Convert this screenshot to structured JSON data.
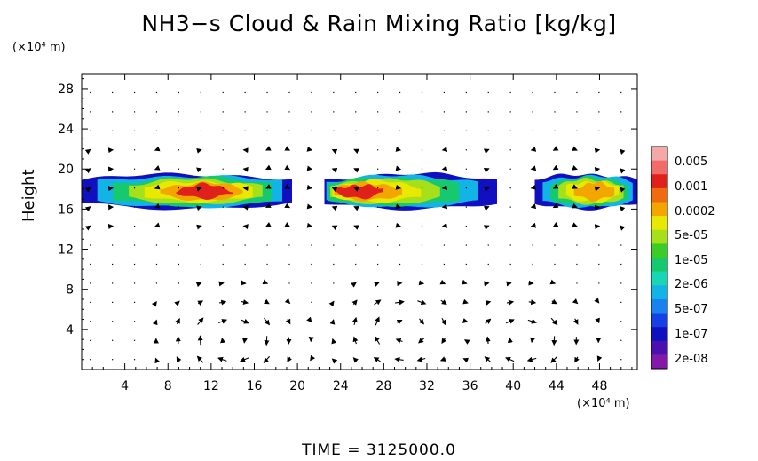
{
  "title": "NH3−s Cloud & Rain Mixing Ratio [kg/kg]",
  "y_unit": "(×10⁴ m)",
  "x_unit": "(×10⁴ m)",
  "ylabel": "Height",
  "time_label": "TIME  =  3125000.0",
  "chart_data": {
    "type": "heatmap",
    "title": "NH3−s Cloud & Rain Mixing Ratio [kg/kg]",
    "xlabel": "",
    "ylabel": "Height",
    "x_unit": "×10⁴ m",
    "y_unit": "×10⁴ m",
    "xlim": [
      0,
      51.5
    ],
    "ylim": [
      0,
      29.5
    ],
    "x_ticks": [
      4,
      8,
      12,
      16,
      20,
      24,
      28,
      32,
      36,
      40,
      44,
      48
    ],
    "y_ticks": [
      4,
      8,
      12,
      16,
      20,
      24,
      28
    ],
    "colorbar": {
      "labels": [
        "0.005",
        "0.001",
        "0.0002",
        "5e-05",
        "1e-05",
        "2e-06",
        "5e-07",
        "1e-07",
        "2e-08"
      ],
      "colors_top_to_bottom": [
        "#f4a8a8",
        "#f26b6b",
        "#e0201a",
        "#f06a10",
        "#f4a600",
        "#e8e800",
        "#a6e01a",
        "#3ccc28",
        "#16c86e",
        "#18d6b4",
        "#12b4e6",
        "#1a82f0",
        "#1440e6",
        "#1010c0",
        "#4a10b0",
        "#8418a8"
      ]
    },
    "cloud_layer": {
      "y_range": [
        16,
        19.5
      ],
      "segments": [
        {
          "x_range": [
            0,
            19.5
          ],
          "peak_x": 12,
          "peak_value": "0.001"
        },
        {
          "x_range": [
            22.5,
            38.5
          ],
          "peak_x": 24,
          "peak_value": "0.001"
        },
        {
          "x_range": [
            42,
            51.5
          ],
          "peak_x": 48,
          "peak_value": "0.0002"
        }
      ]
    },
    "wind_vectors": {
      "circulation_cells": [
        {
          "center_x": 14,
          "center_y": 3,
          "sense": "clockwise"
        },
        {
          "center_x": 30,
          "center_y": 4,
          "sense": "clockwise"
        },
        {
          "center_x": 41,
          "center_y": 3,
          "sense": "clockwise"
        }
      ]
    },
    "time": 3125000.0
  }
}
